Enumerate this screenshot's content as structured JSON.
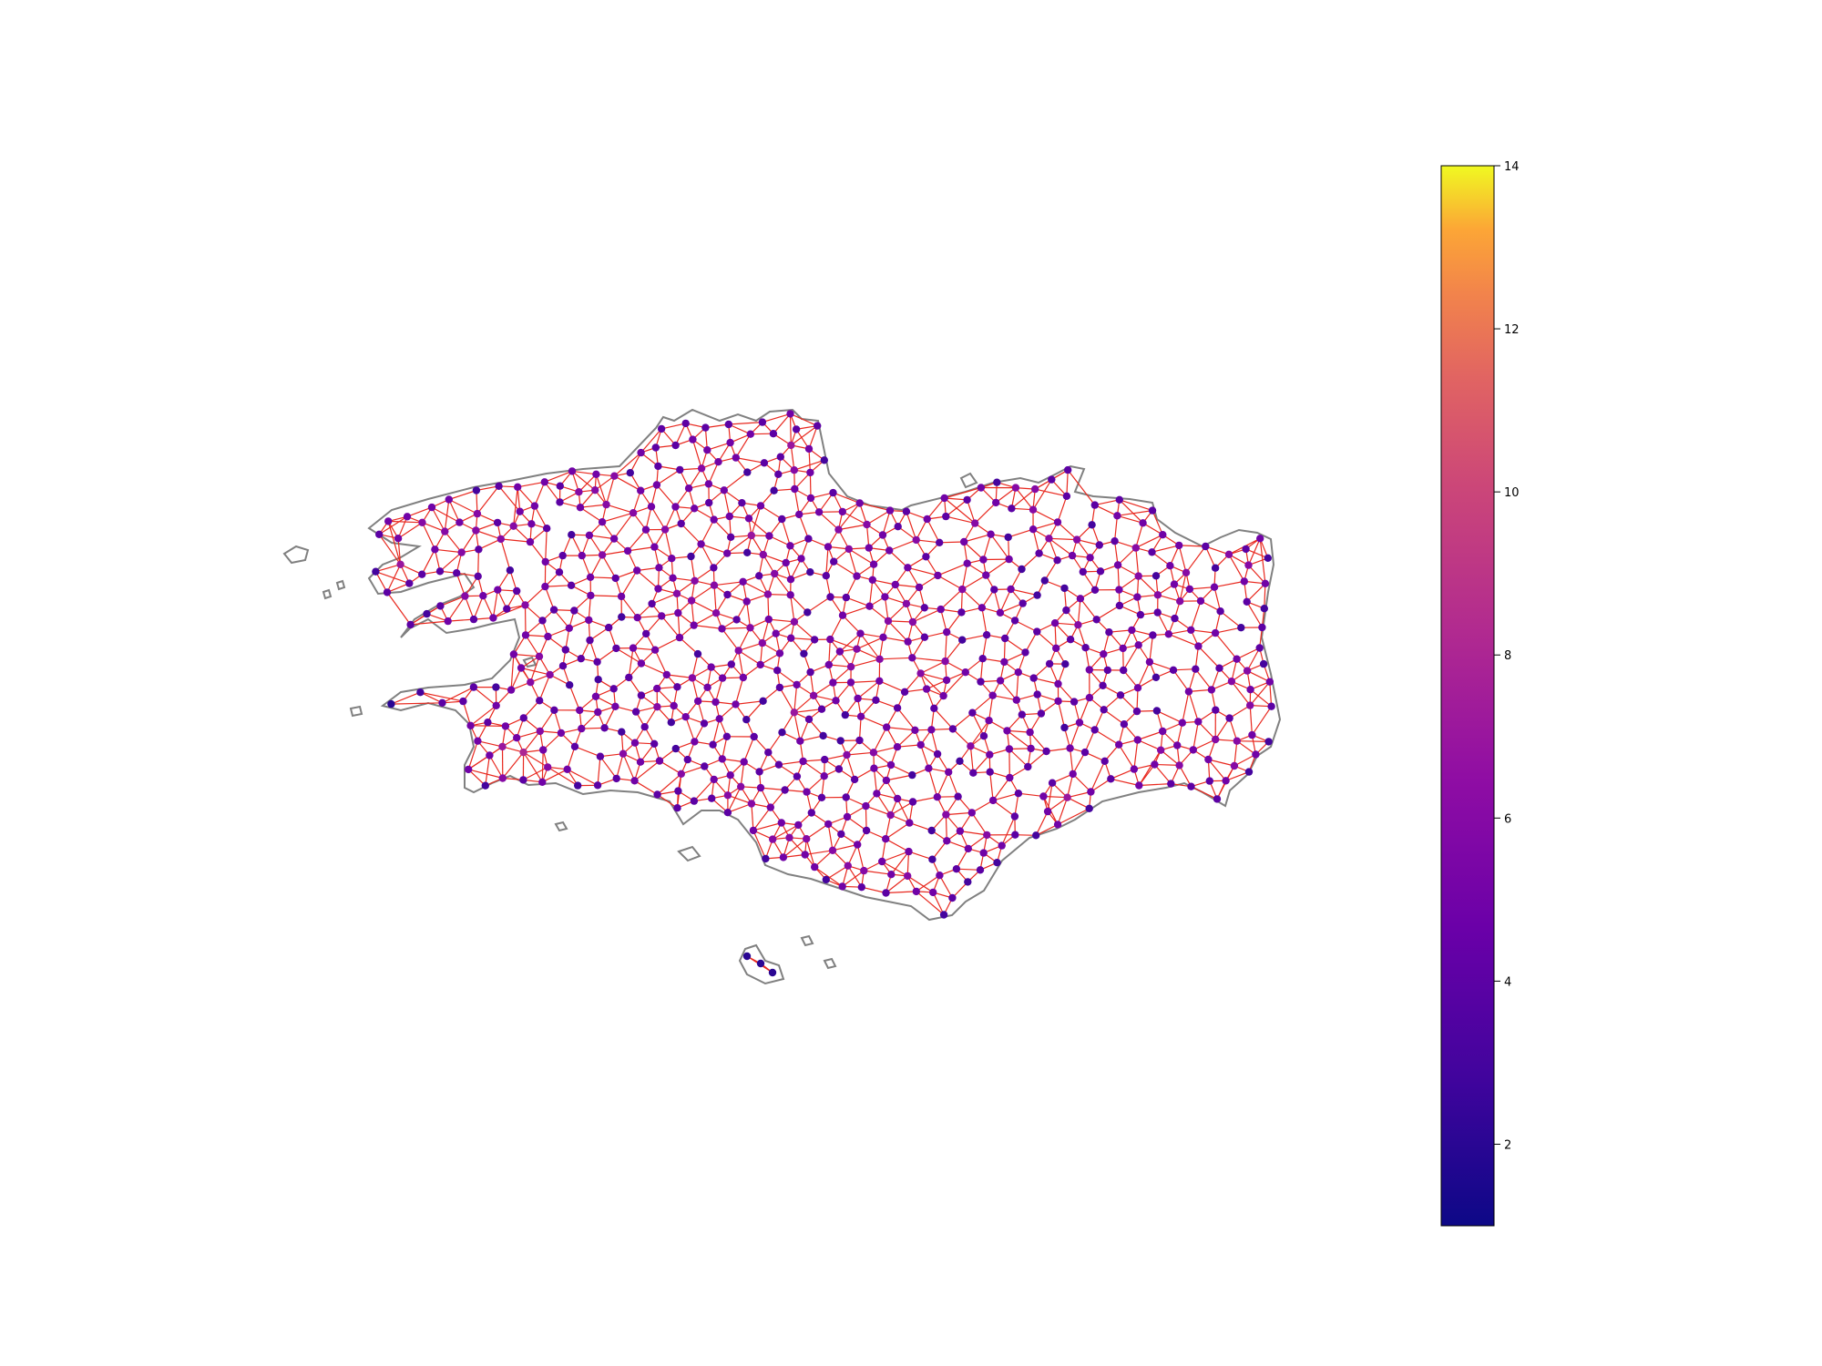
{
  "figure": {
    "background": "#ffffff"
  },
  "map": {
    "region_outline_color": "#808080",
    "edge_color": "#e8281e",
    "node_color_scale": "plasma",
    "node_value_range": [
      1,
      14
    ]
  },
  "chart_data": {
    "type": "network-map",
    "colorbar": {
      "colormap": "plasma",
      "range": [
        1,
        14
      ],
      "ticks": [
        2,
        4,
        6,
        8,
        10,
        12,
        14
      ],
      "tick_labels": [
        "2",
        "4",
        "6",
        "8",
        "10",
        "12",
        "14"
      ],
      "orientation": "vertical",
      "placement": "right"
    }
  }
}
